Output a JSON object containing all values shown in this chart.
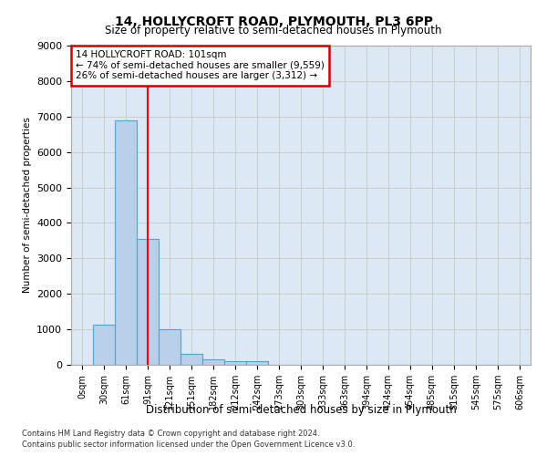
{
  "title1": "14, HOLLYCROFT ROAD, PLYMOUTH, PL3 6PP",
  "title2": "Size of property relative to semi-detached houses in Plymouth",
  "xlabel": "Distribution of semi-detached houses by size in Plymouth",
  "ylabel": "Number of semi-detached properties",
  "footer1": "Contains HM Land Registry data © Crown copyright and database right 2024.",
  "footer2": "Contains public sector information licensed under the Open Government Licence v3.0.",
  "bin_labels": [
    "0sqm",
    "30sqm",
    "61sqm",
    "91sqm",
    "121sqm",
    "151sqm",
    "182sqm",
    "212sqm",
    "242sqm",
    "273sqm",
    "303sqm",
    "333sqm",
    "363sqm",
    "394sqm",
    "424sqm",
    "454sqm",
    "485sqm",
    "515sqm",
    "545sqm",
    "575sqm",
    "606sqm"
  ],
  "bar_values": [
    0,
    1120,
    6880,
    3560,
    1000,
    320,
    150,
    100,
    100,
    0,
    0,
    0,
    0,
    0,
    0,
    0,
    0,
    0,
    0,
    0,
    0
  ],
  "bar_color": "#b8d0e8",
  "bar_edge_color": "#5a9fd4",
  "red_line_x": 3,
  "annotation_title": "14 HOLLYCROFT ROAD: 101sqm",
  "annotation_line1": "← 74% of semi-detached houses are smaller (9,559)",
  "annotation_line2": "26% of semi-detached houses are larger (3,312) →",
  "annotation_box_color": "#ffffff",
  "annotation_border_color": "#cc0000",
  "ylim": [
    0,
    9000
  ],
  "yticks": [
    0,
    1000,
    2000,
    3000,
    4000,
    5000,
    6000,
    7000,
    8000,
    9000
  ],
  "grid_color": "#cccccc",
  "background_color": "#dde8f5"
}
